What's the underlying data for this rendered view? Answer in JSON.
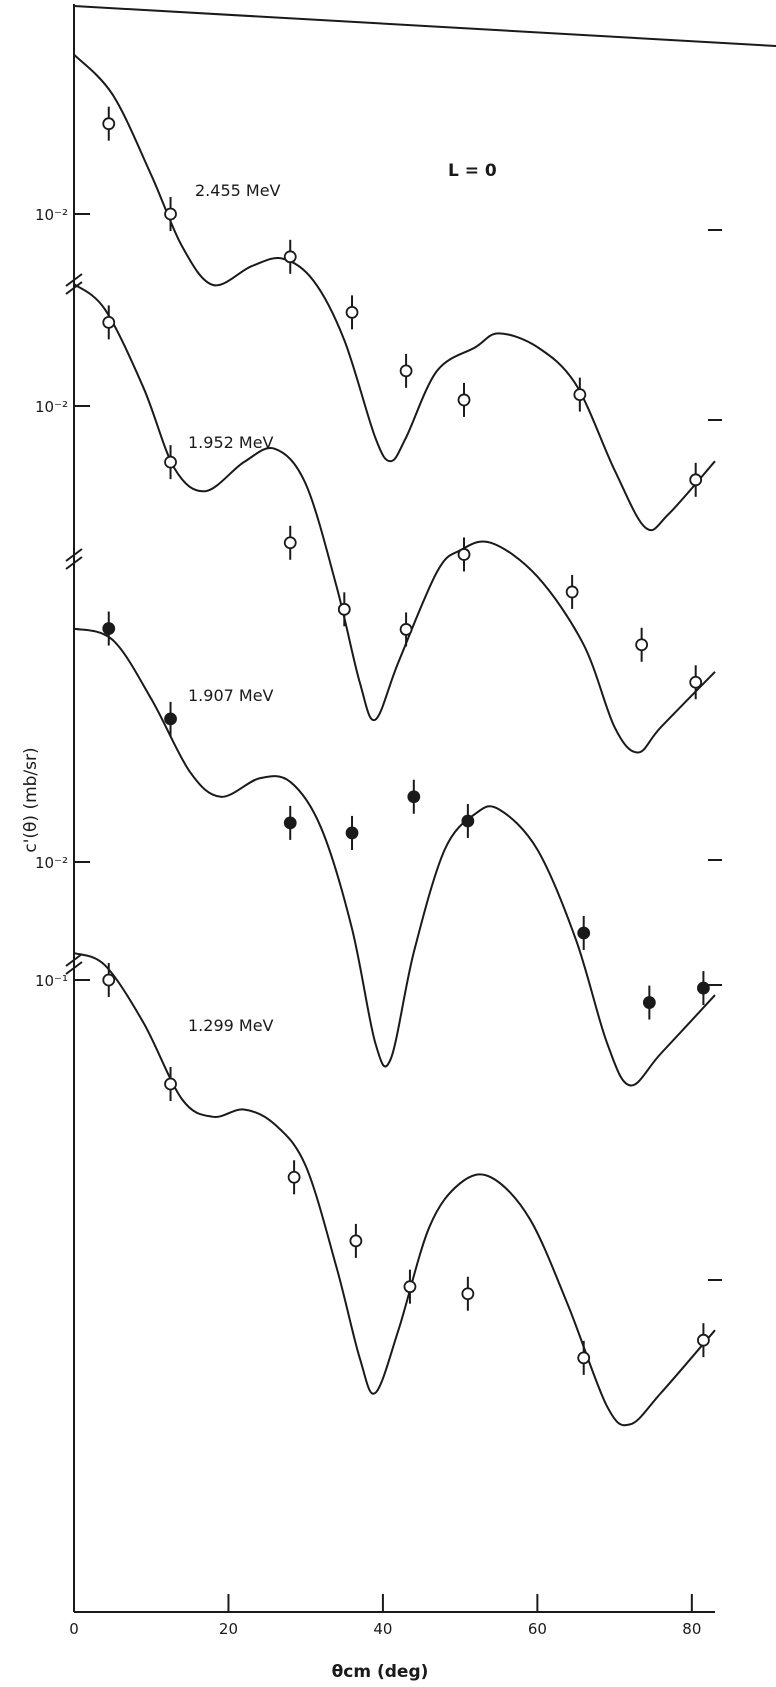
{
  "chart_data": [
    {
      "type": "line",
      "title": "L = 0",
      "xlabel": "θcm (deg)",
      "ylabel": "c'(θ) (mb/sr)",
      "xlim": [
        0,
        83
      ],
      "x_ticks": [
        "0",
        "20",
        "40",
        "60",
        "80"
      ],
      "y_scale": "log",
      "grid": false,
      "panels": [
        {
          "name": "2.455 MeV",
          "y_tick_label": "10⁻²",
          "y_tick_value": 0.01,
          "points": [
            {
              "x": 4.5,
              "y": 0.02,
              "filled": false
            },
            {
              "x": 12.5,
              "y": 0.01,
              "filled": false
            },
            {
              "x": 28,
              "y": 0.0072,
              "filled": false
            },
            {
              "x": 36,
              "y": 0.0047,
              "filled": false
            },
            {
              "x": 43,
              "y": 0.003,
              "filled": false
            },
            {
              "x": 50.5,
              "y": 0.0024,
              "filled": false
            },
            {
              "x": 65.5,
              "y": 0.0025,
              "filled": false
            },
            {
              "x": 80.5,
              "y": 0.0013,
              "filled": false
            }
          ],
          "curve": [
            {
              "x": 0,
              "y": 0.034
            },
            {
              "x": 5,
              "y": 0.025
            },
            {
              "x": 10,
              "y": 0.0135
            },
            {
              "x": 14,
              "y": 0.0078
            },
            {
              "x": 18,
              "y": 0.0058
            },
            {
              "x": 23,
              "y": 0.0067
            },
            {
              "x": 27,
              "y": 0.0071
            },
            {
              "x": 31,
              "y": 0.006
            },
            {
              "x": 35,
              "y": 0.0038
            },
            {
              "x": 39,
              "y": 0.0018
            },
            {
              "x": 41,
              "y": 0.0015
            },
            {
              "x": 43,
              "y": 0.0018
            },
            {
              "x": 47,
              "y": 0.003
            },
            {
              "x": 52,
              "y": 0.0036
            },
            {
              "x": 55,
              "y": 0.004
            },
            {
              "x": 60,
              "y": 0.0036
            },
            {
              "x": 65,
              "y": 0.0027
            },
            {
              "x": 70,
              "y": 0.0014
            },
            {
              "x": 74,
              "y": 0.0009
            },
            {
              "x": 77,
              "y": 0.001
            },
            {
              "x": 83,
              "y": 0.0015
            }
          ]
        },
        {
          "name": "1.952 MeV",
          "y_tick_label": "10⁻²",
          "y_tick_value": 0.01,
          "points": [
            {
              "x": 4.5,
              "y": 0.019,
              "filled": false
            },
            {
              "x": 12.5,
              "y": 0.0065,
              "filled": false
            },
            {
              "x": 28,
              "y": 0.0035,
              "filled": false
            },
            {
              "x": 35,
              "y": 0.0021,
              "filled": false
            },
            {
              "x": 43,
              "y": 0.0018,
              "filled": false
            },
            {
              "x": 50.5,
              "y": 0.0032,
              "filled": false
            },
            {
              "x": 64.5,
              "y": 0.0024,
              "filled": false
            },
            {
              "x": 73.5,
              "y": 0.0016,
              "filled": false
            },
            {
              "x": 80.5,
              "y": 0.0012,
              "filled": false
            }
          ],
          "curve": [
            {
              "x": 0,
              "y": 0.0255
            },
            {
              "x": 4,
              "y": 0.021
            },
            {
              "x": 9,
              "y": 0.0115
            },
            {
              "x": 13,
              "y": 0.0062
            },
            {
              "x": 17,
              "y": 0.0052
            },
            {
              "x": 22,
              "y": 0.0065
            },
            {
              "x": 26,
              "y": 0.0072
            },
            {
              "x": 30,
              "y": 0.0055
            },
            {
              "x": 34,
              "y": 0.0025
            },
            {
              "x": 37,
              "y": 0.0012
            },
            {
              "x": 39,
              "y": 0.0009
            },
            {
              "x": 42,
              "y": 0.0014
            },
            {
              "x": 47,
              "y": 0.0028
            },
            {
              "x": 50,
              "y": 0.0033
            },
            {
              "x": 54,
              "y": 0.0035
            },
            {
              "x": 60,
              "y": 0.0027
            },
            {
              "x": 66,
              "y": 0.0016
            },
            {
              "x": 70,
              "y": 0.00085
            },
            {
              "x": 73,
              "y": 0.0007
            },
            {
              "x": 76,
              "y": 0.00085
            },
            {
              "x": 83,
              "y": 0.0013
            }
          ]
        },
        {
          "name": "1.907 MeV",
          "y_tick_label": "10⁻²",
          "y_tick_value": 0.01,
          "points": [
            {
              "x": 4.5,
              "y": 0.06,
              "filled": true
            },
            {
              "x": 12.5,
              "y": 0.03,
              "filled": true
            },
            {
              "x": 28,
              "y": 0.0135,
              "filled": true
            },
            {
              "x": 36,
              "y": 0.0125,
              "filled": true
            },
            {
              "x": 44,
              "y": 0.0165,
              "filled": true
            },
            {
              "x": 51,
              "y": 0.0137,
              "filled": true
            },
            {
              "x": 66,
              "y": 0.0058,
              "filled": true
            },
            {
              "x": 74.5,
              "y": 0.0034,
              "filled": true
            },
            {
              "x": 81.5,
              "y": 0.0038,
              "filled": true
            }
          ],
          "curve": [
            {
              "x": 0,
              "y": 0.06
            },
            {
              "x": 5,
              "y": 0.055
            },
            {
              "x": 10,
              "y": 0.035
            },
            {
              "x": 15,
              "y": 0.02
            },
            {
              "x": 19,
              "y": 0.0165
            },
            {
              "x": 24,
              "y": 0.019
            },
            {
              "x": 28,
              "y": 0.0185
            },
            {
              "x": 32,
              "y": 0.013
            },
            {
              "x": 36,
              "y": 0.006
            },
            {
              "x": 39,
              "y": 0.0025
            },
            {
              "x": 41,
              "y": 0.0022
            },
            {
              "x": 44,
              "y": 0.005
            },
            {
              "x": 48,
              "y": 0.011
            },
            {
              "x": 52,
              "y": 0.0145
            },
            {
              "x": 55,
              "y": 0.015
            },
            {
              "x": 60,
              "y": 0.011
            },
            {
              "x": 65,
              "y": 0.0055
            },
            {
              "x": 69,
              "y": 0.0025
            },
            {
              "x": 72,
              "y": 0.0018
            },
            {
              "x": 76,
              "y": 0.0023
            },
            {
              "x": 83,
              "y": 0.0036
            }
          ]
        },
        {
          "name": "1.299 MeV",
          "y_tick_label": "10⁻¹",
          "y_tick_value": 0.1,
          "points": [
            {
              "x": 4.5,
              "y": 0.1,
              "filled": false
            },
            {
              "x": 12.5,
              "y": 0.045,
              "filled": false
            },
            {
              "x": 28.5,
              "y": 0.022,
              "filled": false
            },
            {
              "x": 36.5,
              "y": 0.0135,
              "filled": false
            },
            {
              "x": 43.5,
              "y": 0.0095,
              "filled": false
            },
            {
              "x": 51,
              "y": 0.009,
              "filled": false
            },
            {
              "x": 66,
              "y": 0.0055,
              "filled": false
            },
            {
              "x": 81.5,
              "y": 0.0063,
              "filled": false
            }
          ],
          "curve": [
            {
              "x": 0,
              "y": 0.123
            },
            {
              "x": 4,
              "y": 0.112
            },
            {
              "x": 9,
              "y": 0.072
            },
            {
              "x": 14,
              "y": 0.04
            },
            {
              "x": 18,
              "y": 0.035
            },
            {
              "x": 22,
              "y": 0.037
            },
            {
              "x": 26,
              "y": 0.033
            },
            {
              "x": 30,
              "y": 0.024
            },
            {
              "x": 34,
              "y": 0.011
            },
            {
              "x": 37,
              "y": 0.0055
            },
            {
              "x": 39,
              "y": 0.0042
            },
            {
              "x": 42,
              "y": 0.0068
            },
            {
              "x": 46,
              "y": 0.015
            },
            {
              "x": 50,
              "y": 0.021
            },
            {
              "x": 54,
              "y": 0.022
            },
            {
              "x": 59,
              "y": 0.016
            },
            {
              "x": 64,
              "y": 0.0082
            },
            {
              "x": 69,
              "y": 0.0038
            },
            {
              "x": 72,
              "y": 0.0033
            },
            {
              "x": 76,
              "y": 0.0042
            },
            {
              "x": 83,
              "y": 0.0068
            }
          ]
        }
      ]
    }
  ]
}
